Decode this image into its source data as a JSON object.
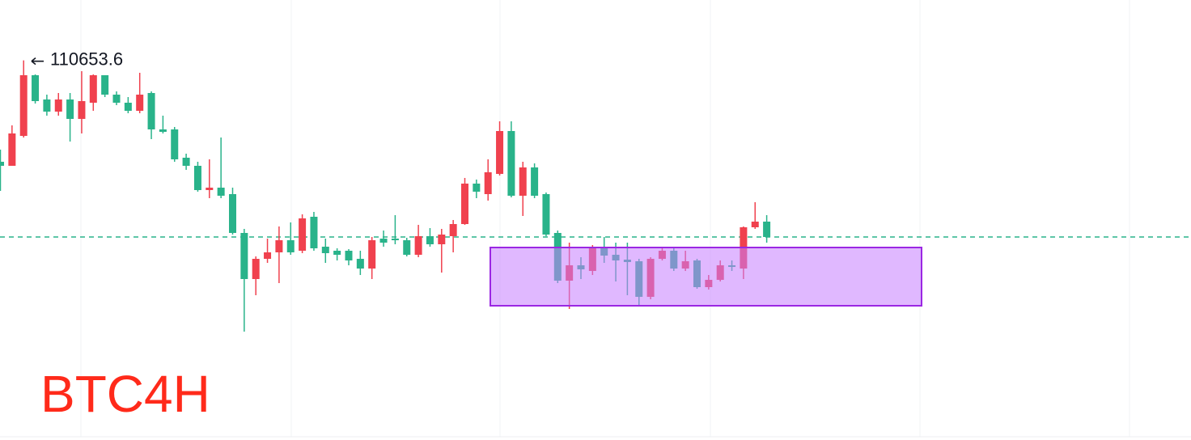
{
  "chart_data": {
    "type": "candlestick",
    "title": "BTC4H",
    "up_color": "#f0414e",
    "down_color": "#29b38a",
    "ylim": [
      106000,
      111400
    ],
    "high_label_index": 2,
    "last_price": 108470,
    "zone": {
      "top": 108340,
      "bottom": 107620,
      "fill": "#c77dff",
      "stroke": "#9b27e3"
    },
    "open": [
      109400,
      109350,
      109720,
      110470,
      110170,
      110020,
      110170,
      109930,
      110130,
      110470,
      110230,
      110130,
      110030,
      110250,
      109800,
      109800,
      109450,
      109350,
      109050,
      109080,
      109000,
      108520,
      107950,
      108200,
      108280,
      108430,
      108300,
      108720,
      108350,
      108300,
      108300,
      108200,
      108080,
      108450,
      108450,
      108430,
      108250,
      108480,
      108380,
      108480,
      108630,
      109130,
      109000,
      109250,
      109780,
      108980,
      109330,
      109000,
      108520,
      107930,
      108120,
      108050,
      108330,
      108250,
      108190,
      108170,
      107730,
      108200,
      108300,
      108080,
      108180,
      107850,
      107940,
      108120,
      108080,
      108590,
      108660
    ],
    "high": [
      109550,
      109850,
      110653.6,
      110480,
      110230,
      110250,
      110250,
      110520,
      110480,
      110470,
      110270,
      110200,
      110500,
      110270,
      109970,
      109830,
      109500,
      109400,
      109430,
      109700,
      109080,
      108570,
      108230,
      108450,
      108600,
      108650,
      108750,
      108780,
      108450,
      108330,
      108320,
      108300,
      108470,
      108550,
      108740,
      108460,
      108620,
      108580,
      108570,
      108680,
      109200,
      109180,
      109430,
      109900,
      109900,
      109400,
      109380,
      109020,
      108550,
      108400,
      108220,
      108370,
      108470,
      108400,
      108400,
      108200,
      108220,
      108350,
      108350,
      108300,
      108200,
      108000,
      108180,
      108180,
      108600,
      108900,
      108740
    ],
    "low": [
      109040,
      109350,
      109700,
      110120,
      109970,
      109970,
      109650,
      109750,
      110030,
      110200,
      110100,
      110000,
      110000,
      109680,
      109750,
      109400,
      109300,
      109030,
      108950,
      108950,
      108500,
      107300,
      107750,
      108150,
      107900,
      108250,
      108270,
      108300,
      108150,
      108180,
      108120,
      108000,
      107950,
      108350,
      108380,
      108230,
      108220,
      108350,
      108030,
      108280,
      108620,
      108950,
      108920,
      109230,
      108960,
      108730,
      108950,
      108480,
      107900,
      107580,
      107950,
      108000,
      108150,
      107920,
      107750,
      107630,
      107700,
      108180,
      108050,
      108050,
      107830,
      107820,
      107920,
      108050,
      107950,
      108570,
      108400
    ],
    "close": [
      109350,
      109750,
      110470,
      110150,
      110020,
      110170,
      109930,
      110150,
      110470,
      110230,
      110130,
      110030,
      110230,
      109800,
      109770,
      109430,
      109350,
      109050,
      109080,
      108980,
      108520,
      107950,
      108200,
      108280,
      108430,
      108280,
      108700,
      108330,
      108270,
      108250,
      108180,
      108080,
      108430,
      108400,
      108430,
      108250,
      108480,
      108380,
      108500,
      108630,
      109130,
      109030,
      109270,
      109780,
      108980,
      109330,
      108980,
      108500,
      107930,
      108120,
      108070,
      108330,
      108240,
      108180,
      108160,
      107730,
      108200,
      108300,
      108080,
      108170,
      107850,
      107940,
      108120,
      108100,
      108590,
      108660,
      108470
    ]
  }
}
